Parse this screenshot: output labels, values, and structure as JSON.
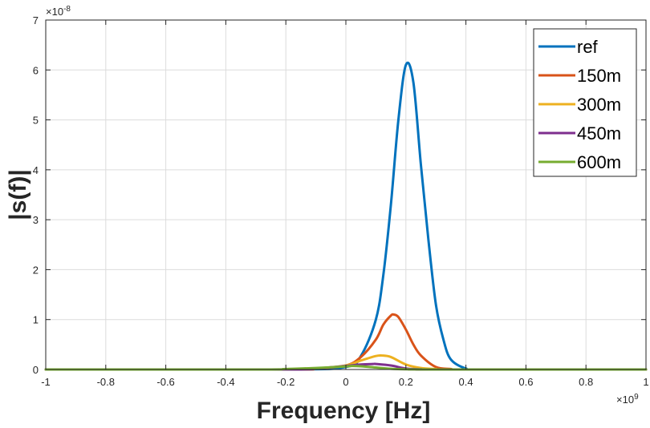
{
  "chart_data": {
    "type": "line",
    "xlabel": "Frequency [Hz]",
    "ylabel": "|s(f)|",
    "x_exponent": {
      "base": "×10",
      "power": "9"
    },
    "y_exponent": {
      "base": "×10",
      "power": "-8"
    },
    "xlim": [
      -1,
      1
    ],
    "ylim": [
      0,
      7
    ],
    "x_ticks": [
      -1,
      -0.8,
      -0.6,
      -0.4,
      -0.2,
      0,
      0.2,
      0.4,
      0.6,
      0.8,
      1
    ],
    "x_tick_labels": [
      "-1",
      "-0.8",
      "-0.6",
      "-0.4",
      "-0.2",
      "0",
      "0.2",
      "0.4",
      "0.6",
      "0.8",
      "1"
    ],
    "y_ticks": [
      0,
      1,
      2,
      3,
      4,
      5,
      6,
      7
    ],
    "y_tick_labels": [
      "0",
      "1",
      "2",
      "3",
      "4",
      "5",
      "6",
      "7"
    ],
    "grid": true,
    "legend_position": "top-right",
    "series": [
      {
        "name": "ref",
        "color": "#0072BD",
        "x": [
          -1,
          -0.2,
          0,
          0.05,
          0.1,
          0.125,
          0.15,
          0.175,
          0.2,
          0.225,
          0.25,
          0.275,
          0.3,
          0.325,
          0.35,
          0.4,
          0.45,
          1
        ],
        "y": [
          0,
          0,
          0.05,
          0.27,
          1.0,
          1.9,
          3.3,
          5.0,
          6.1,
          5.75,
          4.1,
          2.6,
          1.3,
          0.6,
          0.2,
          0.02,
          0,
          0
        ]
      },
      {
        "name": "150m",
        "color": "#D95319",
        "x": [
          -1,
          -0.2,
          -0.1,
          0,
          0.05,
          0.1,
          0.125,
          0.15,
          0.16,
          0.175,
          0.2,
          0.225,
          0.25,
          0.3,
          0.35,
          0.4,
          1
        ],
        "y": [
          0,
          0,
          0.02,
          0.08,
          0.25,
          0.6,
          0.9,
          1.08,
          1.1,
          1.05,
          0.8,
          0.5,
          0.28,
          0.05,
          0.01,
          0,
          0
        ]
      },
      {
        "name": "300m",
        "color": "#EDB120",
        "x": [
          -1,
          -0.2,
          -0.1,
          0,
          0.05,
          0.1,
          0.12,
          0.15,
          0.2,
          0.25,
          0.3,
          0.35,
          1
        ],
        "y": [
          0,
          0,
          0.02,
          0.08,
          0.18,
          0.27,
          0.28,
          0.25,
          0.1,
          0.03,
          0.01,
          0,
          0
        ]
      },
      {
        "name": "450m",
        "color": "#7E2F8E",
        "x": [
          -1,
          -0.2,
          -0.1,
          0,
          0.05,
          0.09,
          0.1,
          0.15,
          0.2,
          0.25,
          0.3,
          1
        ],
        "y": [
          0,
          0,
          0.02,
          0.07,
          0.1,
          0.11,
          0.11,
          0.08,
          0.02,
          0.005,
          0,
          0
        ]
      },
      {
        "name": "600m",
        "color": "#77AC30",
        "x": [
          -1,
          -0.3,
          -0.2,
          -0.1,
          0,
          0.02,
          0.05,
          0.1,
          0.15,
          0.2,
          0.3,
          1
        ],
        "y": [
          0,
          0,
          0.01,
          0.03,
          0.06,
          0.07,
          0.065,
          0.04,
          0.015,
          0.005,
          0,
          0
        ]
      }
    ]
  }
}
